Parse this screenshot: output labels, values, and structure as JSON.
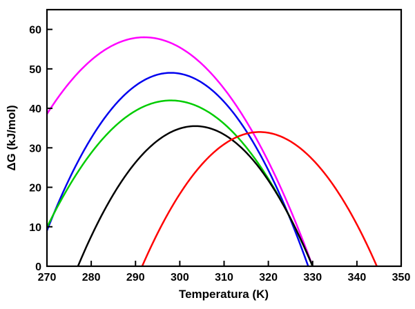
{
  "figure": {
    "background": "#ffffff",
    "frame_color": "#000000"
  },
  "chart_data": {
    "type": "line",
    "title": "",
    "xlabel": "Temperatura (K)",
    "ylabel": "ΔG  (kJ/mol)",
    "xlim": [
      270,
      350
    ],
    "ylim": [
      0,
      65
    ],
    "x_ticks": [
      270,
      280,
      290,
      300,
      310,
      320,
      330,
      340,
      350
    ],
    "y_ticks": [
      0,
      10,
      20,
      30,
      40,
      50,
      60
    ],
    "grid": false,
    "legend": "none",
    "line_width": 2.5,
    "series": [
      {
        "name": "magenta-curve",
        "color": "#FF00FF",
        "shape": "parabola",
        "peak_x": 292,
        "peak_y": 58,
        "zeros": [
          254,
          330
        ],
        "points": [
          [
            270,
            38.6
          ],
          [
            275,
            46.4
          ],
          [
            280,
            52.2
          ],
          [
            285,
            56.0
          ],
          [
            290,
            57.8
          ],
          [
            292,
            58.0
          ],
          [
            295,
            57.6
          ],
          [
            300,
            55.4
          ],
          [
            305,
            51.2
          ],
          [
            310,
            45.0
          ],
          [
            315,
            36.8
          ],
          [
            320,
            26.5
          ],
          [
            325,
            14.3
          ],
          [
            330,
            0
          ]
        ]
      },
      {
        "name": "blue-curve",
        "color": "#0000EE",
        "shape": "parabola",
        "peak_x": 298,
        "peak_y": 49,
        "zeros": [
          267,
          329
        ],
        "points": [
          [
            270,
            9.0
          ],
          [
            275,
            22.0
          ],
          [
            280,
            32.5
          ],
          [
            285,
            40.4
          ],
          [
            290,
            45.7
          ],
          [
            295,
            48.5
          ],
          [
            298,
            49.0
          ],
          [
            300,
            48.8
          ],
          [
            305,
            46.5
          ],
          [
            310,
            41.7
          ],
          [
            315,
            34.3
          ],
          [
            320,
            24.3
          ],
          [
            325,
            11.8
          ],
          [
            329,
            0
          ]
        ]
      },
      {
        "name": "green-curve",
        "color": "#00CC00",
        "shape": "parabola",
        "peak_x": 298,
        "peak_y": 42,
        "zeros": [
          266,
          330
        ],
        "points": [
          [
            270,
            9.8
          ],
          [
            275,
            20.3
          ],
          [
            280,
            28.7
          ],
          [
            285,
            35.1
          ],
          [
            290,
            39.4
          ],
          [
            295,
            41.6
          ],
          [
            298,
            42.0
          ],
          [
            300,
            41.9
          ],
          [
            305,
            40.0
          ],
          [
            310,
            36.1
          ],
          [
            315,
            30.1
          ],
          [
            320,
            22.1
          ],
          [
            325,
            12.1
          ],
          [
            330,
            0
          ]
        ]
      },
      {
        "name": "black-curve",
        "color": "#000000",
        "shape": "parabola",
        "peak_x": 303.5,
        "peak_y": 35.5,
        "zeros": [
          277,
          330
        ],
        "points": [
          [
            277,
            0
          ],
          [
            280,
            7.6
          ],
          [
            285,
            18.2
          ],
          [
            290,
            26.3
          ],
          [
            295,
            31.8
          ],
          [
            300,
            34.9
          ],
          [
            303.5,
            35.5
          ],
          [
            305,
            35.4
          ],
          [
            310,
            33.4
          ],
          [
            315,
            28.8
          ],
          [
            320,
            21.7
          ],
          [
            325,
            12.1
          ],
          [
            330,
            0
          ]
        ]
      },
      {
        "name": "red-curve",
        "color": "#FF0000",
        "shape": "parabola",
        "peak_x": 318,
        "peak_y": 34,
        "zeros": [
          291.5,
          344.5
        ],
        "points": [
          [
            291.5,
            0
          ],
          [
            295,
            8.4
          ],
          [
            300,
            18.3
          ],
          [
            305,
            25.8
          ],
          [
            310,
            30.9
          ],
          [
            315,
            33.6
          ],
          [
            318,
            34.0
          ],
          [
            320,
            33.8
          ],
          [
            325,
            31.6
          ],
          [
            330,
            27.0
          ],
          [
            335,
            20.0
          ],
          [
            340,
            10.6
          ],
          [
            344.5,
            0
          ]
        ]
      }
    ]
  }
}
